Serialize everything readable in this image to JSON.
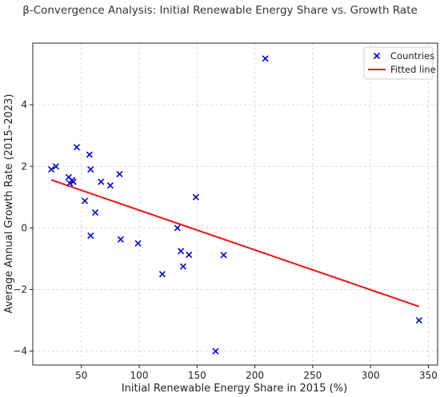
{
  "chart_data": {
    "type": "scatter",
    "title": "β-Convergence Analysis: Initial Renewable Energy Share vs. Growth Rate",
    "xlabel": "Initial Renewable Energy Share in 2015 (%)",
    "ylabel": "Average Annual Growth Rate (2015–2023)",
    "xlim": [
      8,
      358
    ],
    "ylim": [
      -4.45,
      6.0
    ],
    "xticks": [
      50,
      100,
      150,
      200,
      250,
      300,
      350
    ],
    "yticks": [
      -4,
      -2,
      0,
      2,
      4
    ],
    "grid": true,
    "legend_position": "top-right",
    "series": [
      {
        "name": "Countries",
        "kind": "scatter",
        "marker": "x",
        "color": "#0000dd",
        "points": [
          {
            "x": 24,
            "y": 1.9
          },
          {
            "x": 28,
            "y": 2.0
          },
          {
            "x": 39,
            "y": 1.65
          },
          {
            "x": 40,
            "y": 1.45
          },
          {
            "x": 42,
            "y": 1.55
          },
          {
            "x": 43,
            "y": 1.5
          },
          {
            "x": 46,
            "y": 2.62
          },
          {
            "x": 53,
            "y": 0.88
          },
          {
            "x": 57,
            "y": 2.38
          },
          {
            "x": 58,
            "y": 1.9
          },
          {
            "x": 58,
            "y": -0.25
          },
          {
            "x": 62,
            "y": 0.5
          },
          {
            "x": 67,
            "y": 1.5
          },
          {
            "x": 75,
            "y": 1.38
          },
          {
            "x": 83,
            "y": 1.75
          },
          {
            "x": 84,
            "y": -0.37
          },
          {
            "x": 99,
            "y": -0.5
          },
          {
            "x": 120,
            "y": -1.5
          },
          {
            "x": 133,
            "y": 0.0
          },
          {
            "x": 136,
            "y": -0.75
          },
          {
            "x": 138,
            "y": -1.25
          },
          {
            "x": 143,
            "y": -0.87
          },
          {
            "x": 149,
            "y": 1.0
          },
          {
            "x": 166,
            "y": -4.0
          },
          {
            "x": 173,
            "y": -0.88
          },
          {
            "x": 209,
            "y": 5.5
          },
          {
            "x": 342,
            "y": -3.0
          }
        ]
      },
      {
        "name": "Fitted line",
        "kind": "line",
        "color": "#ee1111",
        "points": [
          {
            "x": 24,
            "y": 1.56
          },
          {
            "x": 342,
            "y": -2.55
          }
        ]
      }
    ]
  }
}
